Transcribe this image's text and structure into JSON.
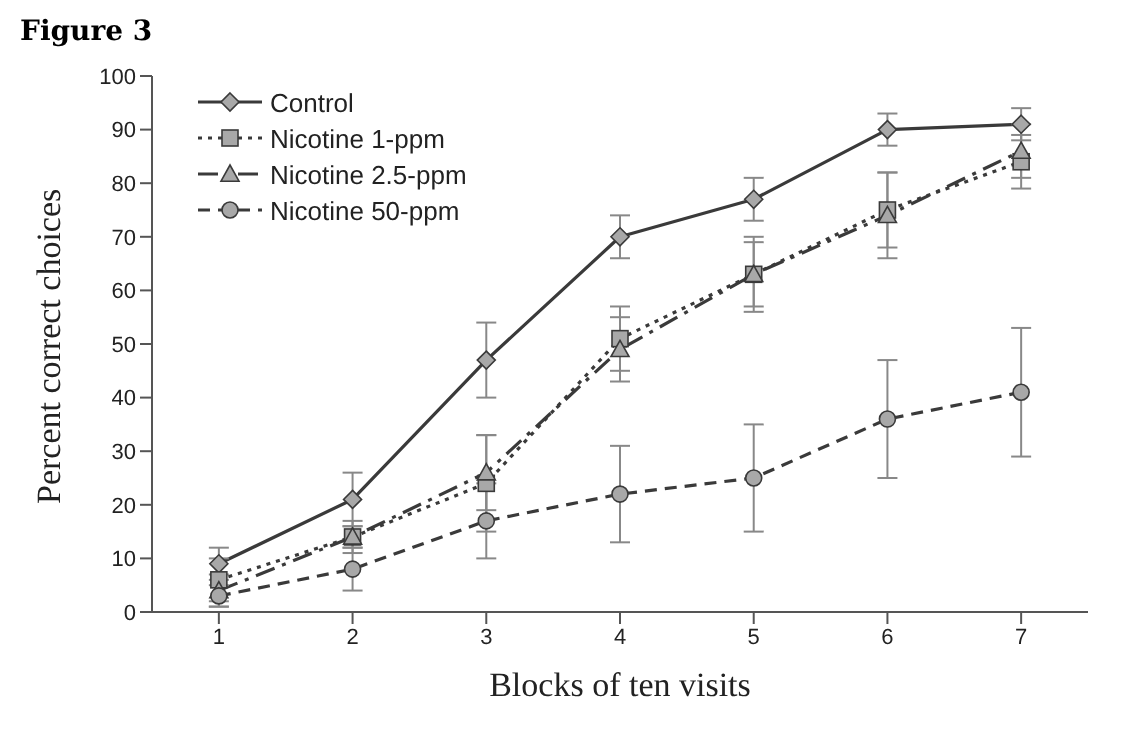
{
  "chart_data": {
    "type": "line",
    "title": "Figure 3",
    "xlabel": "Blocks of ten visits",
    "ylabel": "Percent correct choices",
    "categories": [
      "1",
      "2",
      "3",
      "4",
      "5",
      "6",
      "7"
    ],
    "ylim": [
      0,
      100
    ],
    "yticks": [
      0,
      10,
      20,
      30,
      40,
      50,
      60,
      70,
      80,
      90,
      100
    ],
    "grid": false,
    "legend": "top left",
    "series": [
      {
        "name": "Control",
        "color": "#3a3a3a",
        "marker": "diamond",
        "line_style": "solid",
        "values": [
          9,
          21,
          47,
          70,
          77,
          90,
          91
        ],
        "errors": [
          3,
          5,
          7,
          4,
          4,
          3,
          3
        ]
      },
      {
        "name": "Nicotine 1-ppm",
        "color": "#3a3a3a",
        "marker": "square",
        "line_style": "dotted",
        "values": [
          6,
          14,
          24,
          51,
          63,
          75,
          84
        ],
        "errors": [
          4,
          3,
          9,
          6,
          7,
          7,
          5
        ]
      },
      {
        "name": "Nicotine 2.5-ppm",
        "color": "#3a3a3a",
        "marker": "triangle",
        "line_style": "dashdot",
        "values": [
          4,
          14,
          26,
          49,
          63,
          74,
          86
        ],
        "errors": [
          3,
          2,
          7,
          6,
          6,
          8,
          5
        ]
      },
      {
        "name": "Nicotine 50-ppm",
        "color": "#3a3a3a",
        "marker": "circle",
        "line_style": "dashed",
        "values": [
          3,
          8,
          17,
          22,
          25,
          36,
          41
        ],
        "errors": [
          2,
          4,
          7,
          9,
          10,
          11,
          12
        ]
      }
    ]
  }
}
